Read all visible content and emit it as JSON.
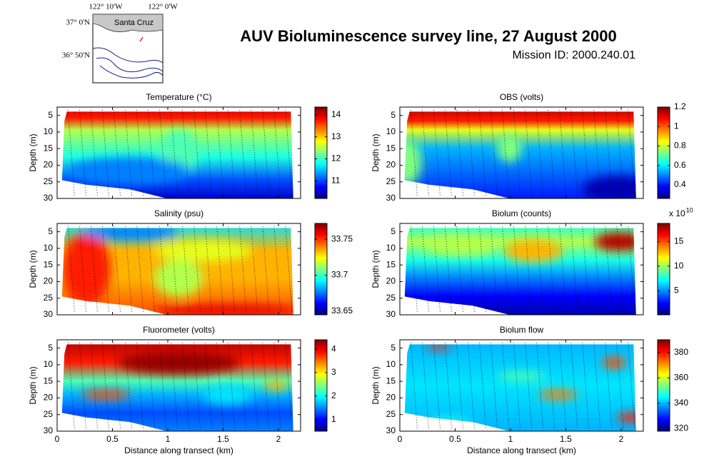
{
  "title": "AUV Bioluminescence survey line, 27 August 2000",
  "subtitle": "Mission ID: 2000.240.01",
  "map": {
    "lon_labels": [
      "122° 10'W",
      "122° 0'W"
    ],
    "lat_labels": [
      "37° 0'N",
      "36° 50'N"
    ],
    "place": "Santa Cruz"
  },
  "chart_data": [
    {
      "type": "heatmap",
      "title": "Temperature (°C)",
      "ylabel": "Depth (m)",
      "xlim": [
        0,
        2.2
      ],
      "ylim": [
        30,
        2.5
      ],
      "xticks": [
        0,
        0.5,
        1,
        1.5,
        2
      ],
      "yticks": [
        5,
        10,
        15,
        20,
        25,
        30
      ],
      "show_xtick_labels": false,
      "colormap": "jet",
      "clim": [
        10.2,
        14.35
      ],
      "cticks": [
        11,
        12,
        13,
        14
      ]
    },
    {
      "type": "heatmap",
      "title": "OBS (volts)",
      "ylabel": "Depth (m)",
      "xlim": [
        0,
        2.2
      ],
      "ylim": [
        30,
        2.5
      ],
      "xticks": [
        0,
        0.5,
        1,
        1.5,
        2
      ],
      "yticks": [
        5,
        10,
        15,
        20,
        25,
        30
      ],
      "show_xtick_labels": false,
      "colormap": "jet",
      "clim": [
        0.26,
        1.2
      ],
      "cticks": [
        0.4,
        0.6,
        0.8,
        1,
        1.2
      ]
    },
    {
      "type": "heatmap",
      "title": "Salinity (psu)",
      "ylabel": "Depth (m)",
      "xlim": [
        0,
        2.2
      ],
      "ylim": [
        30,
        2.5
      ],
      "xticks": [
        0,
        0.5,
        1,
        1.5,
        2
      ],
      "yticks": [
        5,
        10,
        15,
        20,
        25,
        30
      ],
      "show_xtick_labels": false,
      "colormap": "jet",
      "clim": [
        33.645,
        33.772
      ],
      "cticks": [
        33.65,
        33.7,
        33.75
      ]
    },
    {
      "type": "heatmap",
      "title": "Biolum (counts)",
      "ylabel": "Depth (m)",
      "xlim": [
        0,
        2.2
      ],
      "ylim": [
        30,
        2.5
      ],
      "xticks": [
        0,
        0.5,
        1,
        1.5,
        2
      ],
      "yticks": [
        5,
        10,
        15,
        20,
        25,
        30
      ],
      "show_xtick_labels": false,
      "colormap": "jet",
      "clim": [
        0.1,
        18.7
      ],
      "cticks": [
        5,
        10,
        15
      ],
      "colorbar_multiplier": {
        "base": "x 10",
        "exponent": "10"
      }
    },
    {
      "type": "heatmap",
      "title": "Fluorometer (volts)",
      "ylabel": "Depth (m)",
      "xlabel": "Distance along transect (km)",
      "xlim": [
        0,
        2.2
      ],
      "ylim": [
        30,
        2.5
      ],
      "xticks": [
        0,
        0.5,
        1,
        1.5,
        2
      ],
      "yticks": [
        5,
        10,
        15,
        20,
        25,
        30
      ],
      "show_xtick_labels": true,
      "colormap": "jet",
      "clim": [
        0.5,
        4.4
      ],
      "cticks": [
        1,
        2,
        3,
        4
      ]
    },
    {
      "type": "heatmap",
      "title": "Biolum flow",
      "ylabel": "Depth (m)",
      "xlabel": "Distance along transect (km)",
      "xlim": [
        0,
        2.2
      ],
      "ylim": [
        30,
        2.5
      ],
      "xticks": [
        0,
        0.5,
        1,
        1.5,
        2
      ],
      "yticks": [
        5,
        10,
        15,
        20,
        25,
        30
      ],
      "show_xtick_labels": true,
      "colormap": "jet",
      "clim": [
        318,
        390
      ],
      "cticks": [
        320,
        340,
        360,
        380
      ]
    }
  ]
}
